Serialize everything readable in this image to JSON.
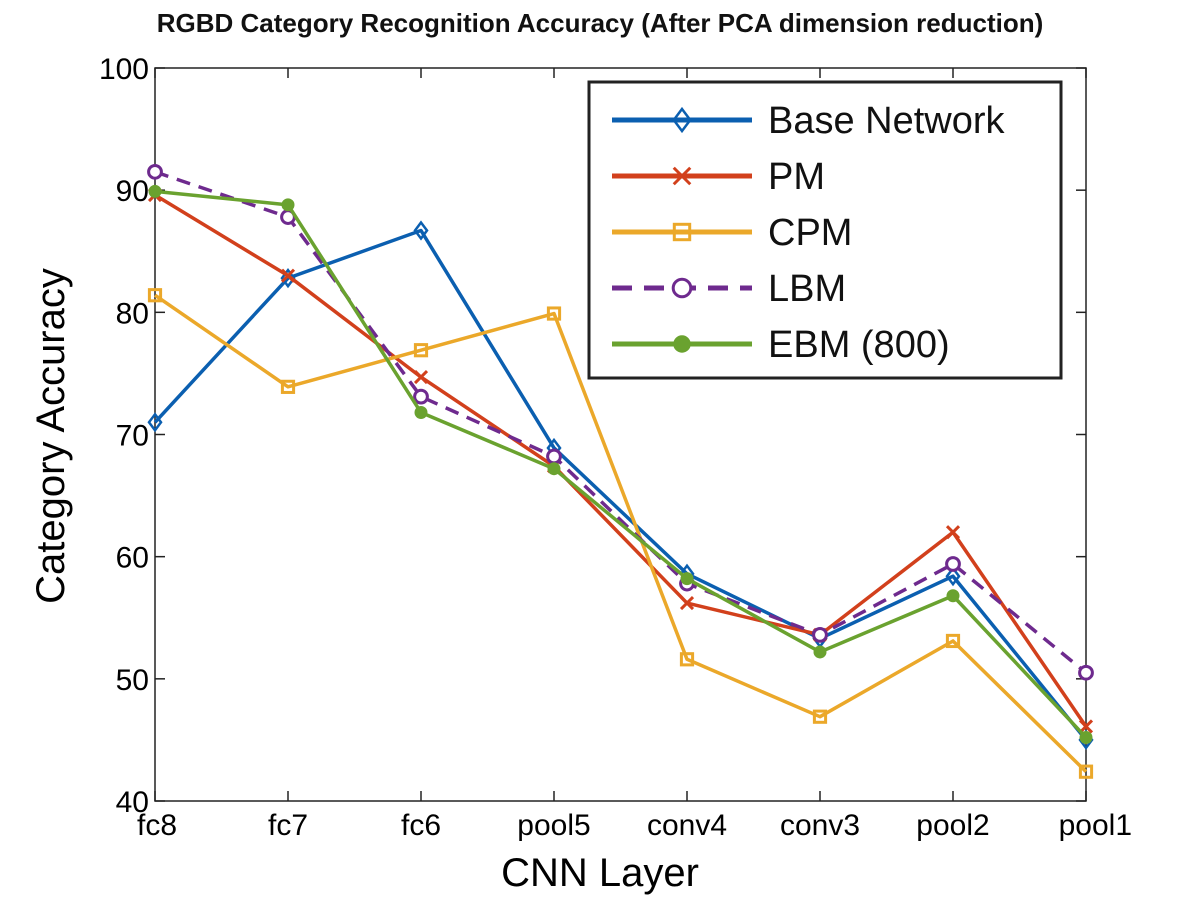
{
  "chart_data": {
    "type": "line",
    "title": "RGBD Category Recognition Accuracy (After PCA dimension reduction)",
    "xlabel": "CNN Layer",
    "ylabel": "Category Accuracy",
    "categories": [
      "fc8",
      "fc7",
      "fc6",
      "pool5",
      "conv4",
      "conv3",
      "pool2",
      "pool1"
    ],
    "ylim": [
      40,
      100
    ],
    "yticks": [
      40,
      50,
      60,
      70,
      80,
      90,
      100
    ],
    "grid": false,
    "legend_position": "top-right",
    "series": [
      {
        "name": "Base Network",
        "color": "#0b5fb0",
        "marker": "diamond",
        "dash": "solid",
        "values": [
          71.0,
          82.8,
          86.7,
          68.9,
          58.6,
          53.3,
          58.4,
          45.0
        ]
      },
      {
        "name": "PM",
        "color": "#d2401c",
        "marker": "x",
        "dash": "solid",
        "values": [
          89.6,
          83.0,
          74.7,
          67.4,
          56.2,
          53.6,
          62.0,
          46.1
        ]
      },
      {
        "name": "CPM",
        "color": "#eba82a",
        "marker": "square",
        "dash": "solid",
        "values": [
          81.4,
          73.9,
          76.9,
          79.9,
          51.6,
          46.9,
          53.1,
          42.4
        ]
      },
      {
        "name": "LBM",
        "color": "#6e2a8e",
        "marker": "circle-open",
        "dash": "dashed",
        "values": [
          91.5,
          87.8,
          73.1,
          68.2,
          57.8,
          53.6,
          59.4,
          50.5
        ]
      },
      {
        "name": "EBM (800)",
        "color": "#6aa22f",
        "marker": "circle-filled",
        "dash": "solid",
        "values": [
          89.9,
          88.8,
          71.8,
          67.2,
          58.2,
          52.2,
          56.8,
          45.2
        ]
      }
    ]
  }
}
